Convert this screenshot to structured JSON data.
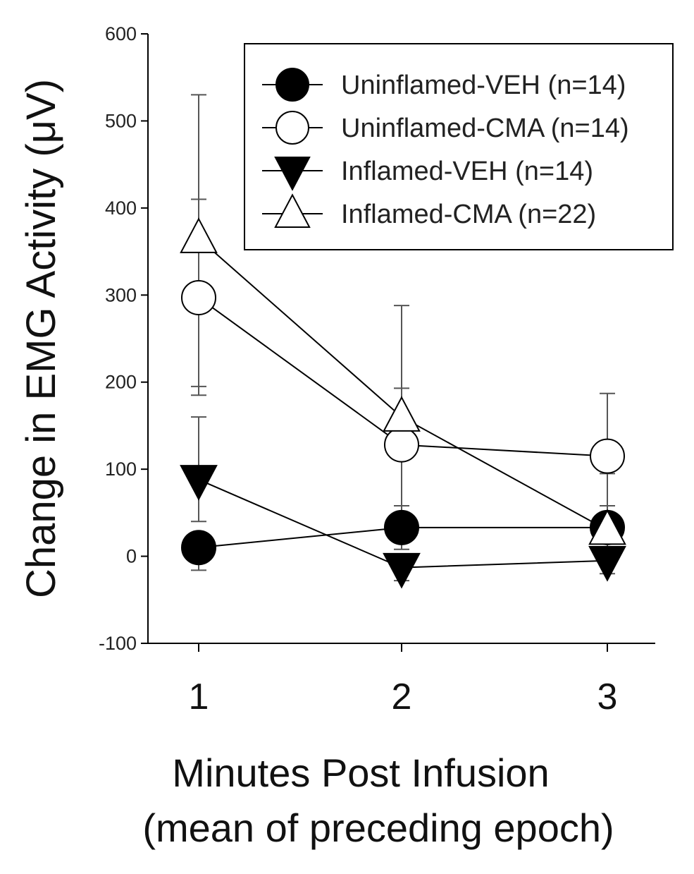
{
  "chart_data": {
    "type": "line",
    "title": "",
    "xlabel": [
      "Minutes Post Infusion",
      "(mean of preceding epoch)"
    ],
    "ylabel": "Change in EMG Activity (μV)",
    "x": [
      1,
      2,
      3
    ],
    "xticks": [
      "1",
      "2",
      "3"
    ],
    "ylim": [
      -100,
      600
    ],
    "yticks": [
      "-100",
      "0",
      "100",
      "200",
      "300",
      "400",
      "500",
      "600"
    ],
    "legend_position": "top-right",
    "series": [
      {
        "name": "Uninflamed-VEH (n=14)",
        "marker": "filled-circle",
        "color": "#000000",
        "values": [
          10,
          33,
          33
        ],
        "err_high": [
          4,
          58,
          58
        ],
        "err_low": [
          -16,
          8,
          8
        ]
      },
      {
        "name": "Uninflamed-CMA (n=14)",
        "marker": "open-circle",
        "color": "#000000",
        "values": [
          297,
          128,
          115
        ],
        "err_high": [
          410,
          193,
          187
        ],
        "err_low": [
          185,
          50,
          40
        ]
      },
      {
        "name": "Inflamed-VEH (n=14)",
        "marker": "filled-triangle-down",
        "color": "#000000",
        "values": [
          88,
          -13,
          -5
        ],
        "err_high": [
          160,
          2,
          10
        ],
        "err_low": [
          40,
          -28,
          -20
        ]
      },
      {
        "name": "Inflamed-CMA (n=22)",
        "marker": "open-triangle-up",
        "color": "#000000",
        "values": [
          365,
          160,
          30
        ],
        "err_high": [
          530,
          288,
          95
        ],
        "err_low": [
          195,
          30,
          -10
        ]
      }
    ]
  }
}
